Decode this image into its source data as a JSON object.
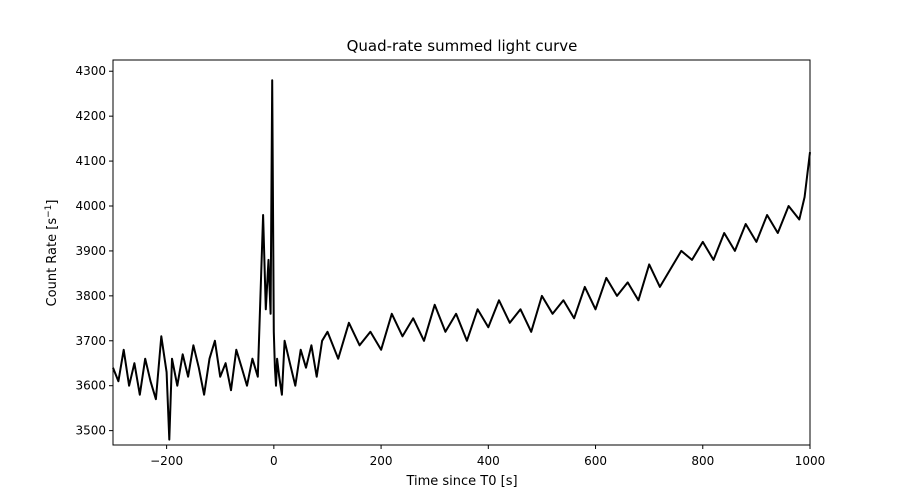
{
  "chart_data": {
    "type": "line",
    "title": "Quad-rate summed light curve",
    "xlabel": "Time since T0 [s]",
    "ylabel": "Count Rate [s",
    "ylabel_sup": "−1",
    "ylabel_end": "]",
    "xlim": [
      -300,
      1000
    ],
    "ylim": [
      3468,
      4325
    ],
    "xticks": [
      -200,
      0,
      200,
      400,
      600,
      800,
      1000
    ],
    "xtick_labels": [
      "−200",
      "0",
      "200",
      "400",
      "600",
      "800",
      "1000"
    ],
    "yticks": [
      3500,
      3600,
      3700,
      3800,
      3900,
      4000,
      4100,
      4200,
      4300
    ],
    "ytick_labels": [
      "3500",
      "3600",
      "3700",
      "3800",
      "3900",
      "4000",
      "4100",
      "4200",
      "4300"
    ],
    "grid": false,
    "line_color": "#000000",
    "series": [
      {
        "x": [
          -300,
          -290,
          -280,
          -270,
          -260,
          -250,
          -240,
          -230,
          -220,
          -210,
          -200,
          -195,
          -190,
          -180,
          -170,
          -160,
          -150,
          -140,
          -130,
          -120,
          -110,
          -100,
          -90,
          -80,
          -70,
          -60,
          -50,
          -40,
          -30,
          -20,
          -15,
          -10,
          -6,
          -3,
          0,
          2,
          4,
          6,
          10,
          15,
          20,
          30,
          40,
          50,
          60,
          70,
          80,
          90,
          100,
          120,
          140,
          160,
          180,
          200,
          220,
          240,
          260,
          280,
          300,
          320,
          340,
          360,
          380,
          400,
          420,
          440,
          460,
          480,
          500,
          520,
          540,
          560,
          580,
          600,
          620,
          640,
          660,
          680,
          700,
          720,
          740,
          760,
          780,
          800,
          820,
          840,
          860,
          880,
          900,
          920,
          940,
          960,
          980,
          990,
          1000
        ],
        "y": [
          3640,
          3610,
          3680,
          3600,
          3650,
          3580,
          3660,
          3610,
          3570,
          3710,
          3630,
          3480,
          3660,
          3600,
          3670,
          3620,
          3690,
          3640,
          3580,
          3660,
          3700,
          3620,
          3650,
          3590,
          3680,
          3640,
          3600,
          3660,
          3620,
          3980,
          3770,
          3880,
          3760,
          4280,
          3720,
          3640,
          3600,
          3660,
          3620,
          3580,
          3700,
          3650,
          3600,
          3680,
          3640,
          3690,
          3620,
          3700,
          3720,
          3660,
          3740,
          3690,
          3720,
          3680,
          3760,
          3710,
          3750,
          3700,
          3780,
          3720,
          3760,
          3700,
          3770,
          3730,
          3790,
          3740,
          3770,
          3720,
          3800,
          3760,
          3790,
          3750,
          3820,
          3770,
          3840,
          3800,
          3830,
          3790,
          3870,
          3820,
          3860,
          3900,
          3880,
          3920,
          3880,
          3940,
          3900,
          3960,
          3920,
          3980,
          3940,
          4000,
          3970,
          4020,
          4120
        ]
      }
    ]
  }
}
